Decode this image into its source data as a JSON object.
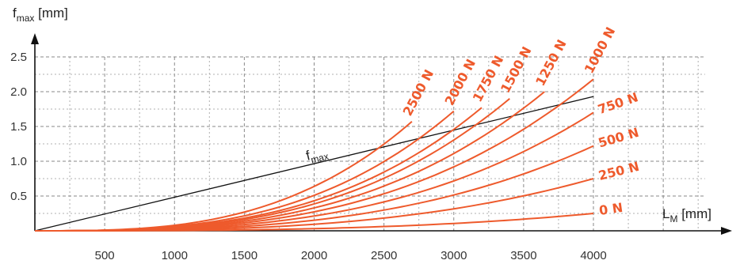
{
  "chart_data": {
    "type": "line",
    "x_axis": {
      "label": "L",
      "label_subscript": "M",
      "unit": "[mm]",
      "range": [
        0,
        4800
      ],
      "ticks": [
        500,
        1000,
        1500,
        2000,
        2500,
        3000,
        3500,
        4000
      ]
    },
    "y_axis": {
      "label": "f",
      "label_subscript": "max",
      "unit": "[mm]",
      "range": [
        0,
        2.6
      ],
      "ticks": [
        "0.5",
        "1.0",
        "1.5",
        "2.0",
        "2.5"
      ]
    },
    "grid": true,
    "reference_line": {
      "name": "f",
      "name_subscript": "max",
      "points": [
        [
          0,
          0
        ],
        [
          4000,
          1.93
        ]
      ],
      "color": "#111111"
    },
    "series_color": "#ee5a2c",
    "series": [
      {
        "name": "0 N",
        "x_end": 4000,
        "y_end": 0.25
      },
      {
        "name": "250 N",
        "x_end": 4000,
        "y_end": 0.75
      },
      {
        "name": "500 N",
        "x_end": 4000,
        "y_end": 1.22
      },
      {
        "name": "750 N",
        "x_end": 4000,
        "y_end": 1.7
      },
      {
        "name": "1000 N",
        "x_end": 4000,
        "y_end": 2.18
      },
      {
        "name": "1250 N",
        "x_end": 3650,
        "y_end": 2.0
      },
      {
        "name": "1500 N",
        "x_end": 3400,
        "y_end": 1.9
      },
      {
        "name": "1750 N",
        "x_end": 3200,
        "y_end": 1.77
      },
      {
        "name": "2000 N",
        "x_end": 3000,
        "y_end": 1.72
      },
      {
        "name": "2500 N",
        "x_end": 2700,
        "y_end": 1.57
      }
    ]
  }
}
